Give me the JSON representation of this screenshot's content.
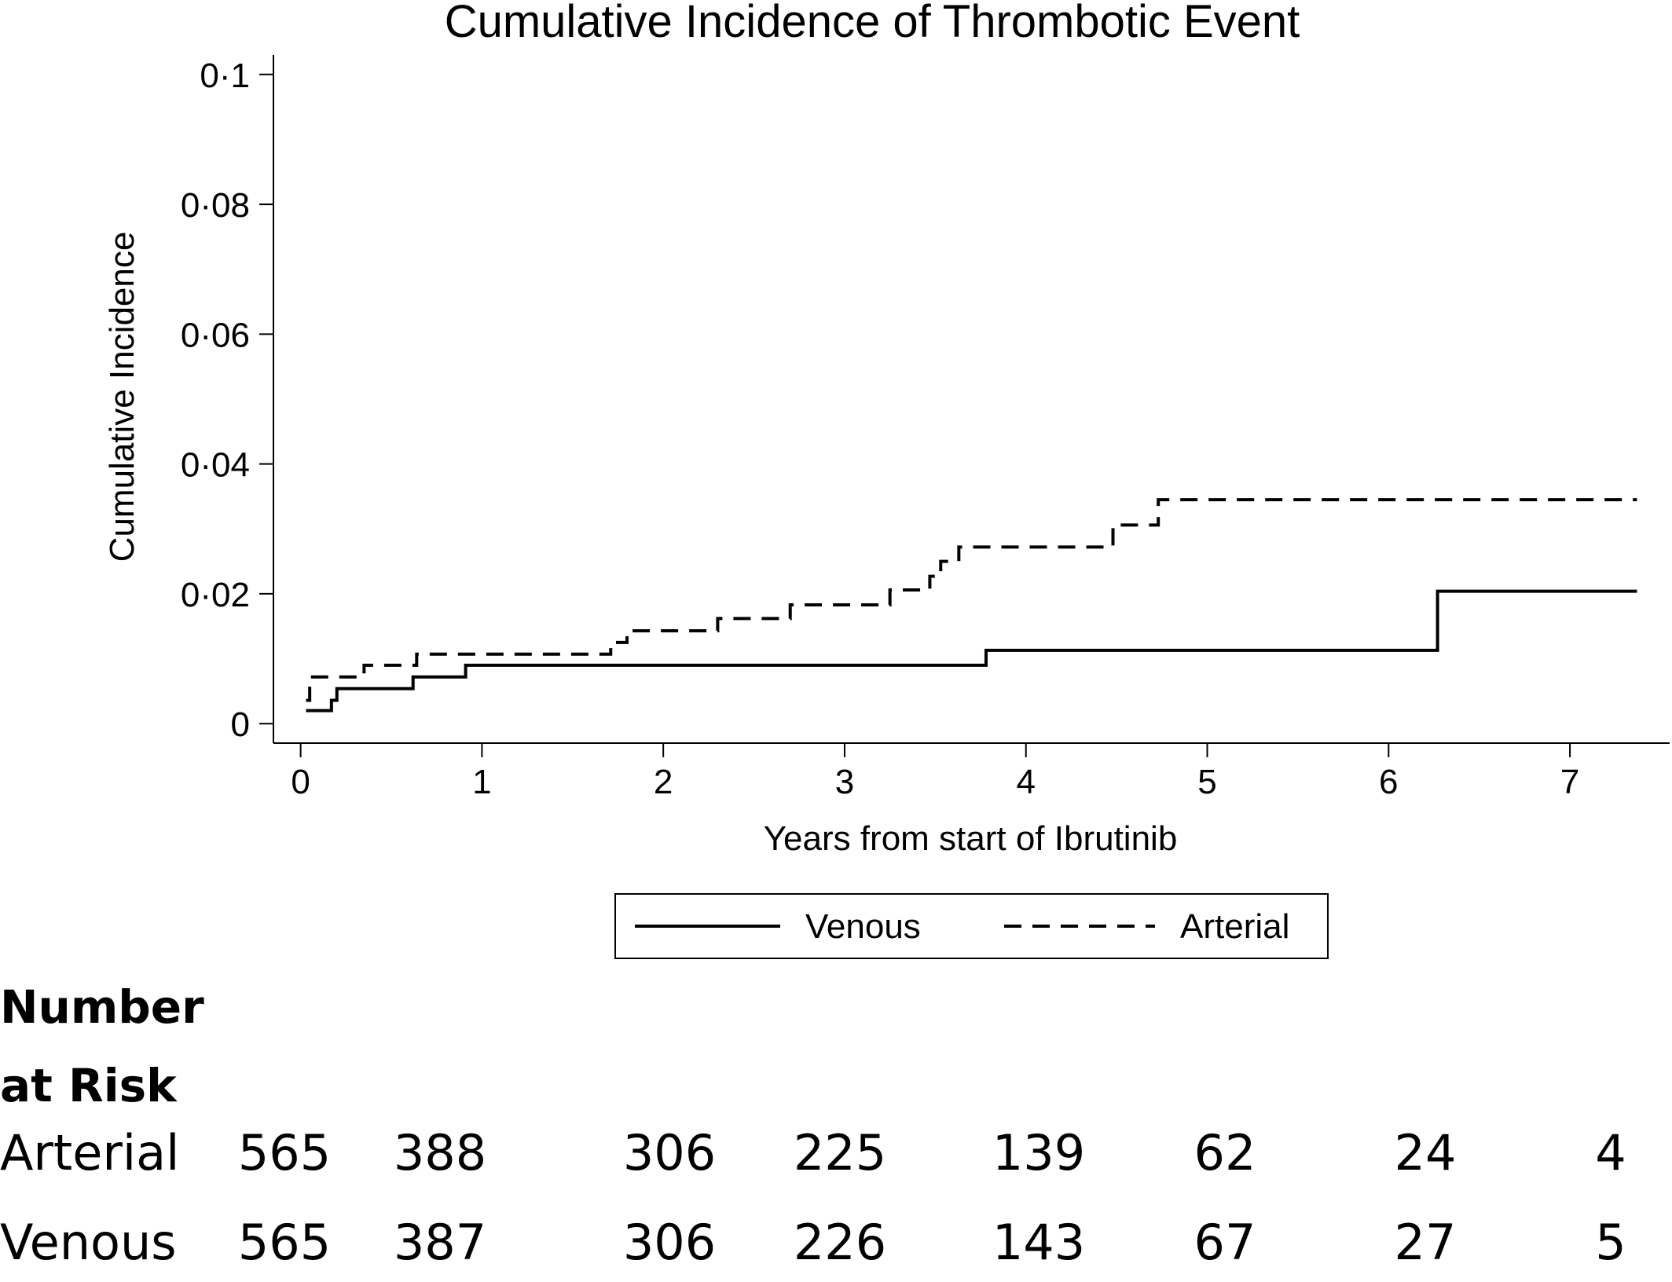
{
  "chart_data": {
    "type": "line",
    "title": "Cumulative Incidence of Thrombotic Event",
    "xlabel": "Years from start of Ibrutinib",
    "ylabel": "Cumulative Incidence",
    "xlim": [
      -0.15,
      7.55
    ],
    "ylim": [
      -0.003,
      0.103
    ],
    "x_ticks": [
      0,
      1,
      2,
      3,
      4,
      5,
      6,
      7
    ],
    "x_tick_labels": [
      "0",
      "1",
      "2",
      "3",
      "4",
      "5",
      "6",
      "7"
    ],
    "y_ticks": [
      0,
      0.02,
      0.04,
      0.06,
      0.08,
      0.1
    ],
    "y_tick_labels": [
      "0",
      "0·02",
      "0·04",
      "0·06",
      "0·08",
      "0·1"
    ],
    "legend_position": "bottom-center",
    "grid": false,
    "series": [
      {
        "name": "Venous",
        "line_style": "solid",
        "step": true,
        "x": [
          0.03,
          0.17,
          0.2,
          0.62,
          0.91,
          3.78,
          6.27,
          7.37
        ],
        "y": [
          0.002,
          0.0036,
          0.0054,
          0.0072,
          0.009,
          0.0113,
          0.0204,
          0.0204
        ]
      },
      {
        "name": "Arterial",
        "line_style": "dashed",
        "step": true,
        "x": [
          0.03,
          0.05,
          0.35,
          0.64,
          1.71,
          1.8,
          2.3,
          2.7,
          3.25,
          3.47,
          3.53,
          3.63,
          4.48,
          4.73,
          7.37
        ],
        "y": [
          0.0036,
          0.0072,
          0.009,
          0.0107,
          0.0125,
          0.0143,
          0.0162,
          0.0183,
          0.0206,
          0.0227,
          0.025,
          0.0272,
          0.0306,
          0.0345,
          0.0345
        ]
      }
    ],
    "risk_table": {
      "heading": [
        "Number",
        "at Risk"
      ],
      "times": [
        0,
        1,
        2,
        3,
        4,
        5,
        6,
        7
      ],
      "rows": [
        {
          "label": "Arterial",
          "values": [
            "565",
            "388",
            "306",
            "225",
            "139",
            "62",
            "24",
            "4"
          ]
        },
        {
          "label": "Venous",
          "values": [
            "565",
            "387",
            "306",
            "226",
            "143",
            "67",
            "27",
            "5"
          ]
        }
      ]
    }
  }
}
